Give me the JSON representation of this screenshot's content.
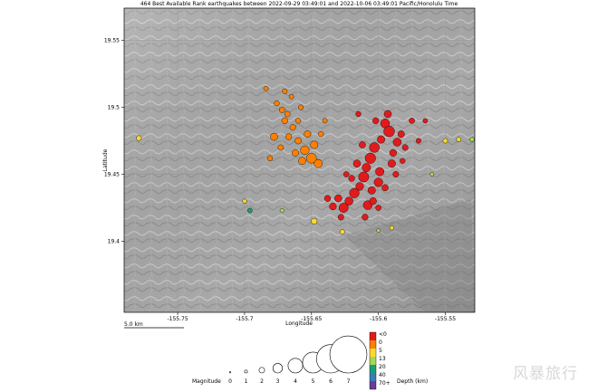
{
  "title": "464 Best Available Rank earthquakes between 2022-09-29 03:49:01 and 2022-10-06 03:49:01 Pacific/Honolulu Time",
  "map": {
    "xlabel": "Longitude",
    "ylabel": "Latitude",
    "lon_ticks": [
      "-155.75",
      "-155.7",
      "-155.65",
      "-155.6",
      "-155.55"
    ],
    "lon_tick_values": [
      -155.75,
      -155.7,
      -155.65,
      -155.6,
      -155.55
    ],
    "lat_ticks": [
      "19.55",
      "19.5",
      "19.45",
      "19.4"
    ],
    "lat_tick_values": [
      19.55,
      19.5,
      19.45,
      19.4
    ],
    "lon_range": [
      -155.79,
      -155.528
    ],
    "lat_range": [
      19.347,
      19.574
    ],
    "scale_bar_label": "5.0 km",
    "background": "shaded relief"
  },
  "legend": {
    "magnitude_title": "Magnitude",
    "magnitudes": [
      "0",
      "1",
      "2",
      "3",
      "4",
      "5",
      "6",
      "7"
    ],
    "depth_title": "Depth (km)",
    "depth_labels": [
      "<0",
      "0",
      "5",
      "13",
      "20",
      "40",
      "70+"
    ],
    "depth_colors": [
      "#e31a1c",
      "#ff7f00",
      "#ffd92f",
      "#a6d854",
      "#1b9e77",
      "#377eb8",
      "#6a3d9a"
    ]
  },
  "watermark": "风暴旅行",
  "chart_data": {
    "type": "scatter",
    "title": "464 Best Available Rank earthquakes between 2022-09-29 03:49:01 and 2022-10-06 03:49:01 Pacific/Honolulu Time",
    "xlabel": "Longitude",
    "ylabel": "Latitude",
    "xlim": [
      -155.79,
      -155.528
    ],
    "ylim": [
      19.347,
      19.574
    ],
    "grid": true,
    "clusters": [
      {
        "depth": "<0",
        "color": "#e31a1c",
        "points": [
          [
            -155.595,
            19.488,
            2.5
          ],
          [
            -155.592,
            19.482,
            3.1
          ],
          [
            -155.598,
            19.476,
            2.0
          ],
          [
            -155.603,
            19.47,
            2.8
          ],
          [
            -155.606,
            19.462,
            3.0
          ],
          [
            -155.609,
            19.455,
            2.3
          ],
          [
            -155.611,
            19.448,
            2.9
          ],
          [
            -155.614,
            19.441,
            2.1
          ],
          [
            -155.618,
            19.436,
            2.7
          ],
          [
            -155.622,
            19.43,
            2.2
          ],
          [
            -155.626,
            19.425,
            2.6
          ],
          [
            -155.63,
            19.432,
            1.9
          ],
          [
            -155.6,
            19.444,
            2.4
          ],
          [
            -155.605,
            19.438,
            2.0
          ],
          [
            -155.608,
            19.427,
            2.5
          ],
          [
            -155.589,
            19.466,
            1.8
          ],
          [
            -155.586,
            19.474,
            2.2
          ],
          [
            -155.59,
            19.458,
            2.0
          ],
          [
            -155.583,
            19.48,
            1.7
          ],
          [
            -155.612,
            19.472,
            1.6
          ],
          [
            -155.616,
            19.458,
            1.9
          ],
          [
            -155.599,
            19.452,
            2.3
          ],
          [
            -155.604,
            19.43,
            1.8
          ],
          [
            -155.62,
            19.447,
            1.5
          ],
          [
            -155.595,
            19.44,
            1.6
          ],
          [
            -155.58,
            19.47,
            1.4
          ],
          [
            -155.575,
            19.49,
            1.3
          ],
          [
            -155.634,
            19.426,
            1.8
          ],
          [
            -155.638,
            19.432,
            1.5
          ],
          [
            -155.628,
            19.418,
            1.4
          ],
          [
            -155.61,
            19.418,
            1.5
          ],
          [
            -155.6,
            19.425,
            1.3
          ],
          [
            -155.587,
            19.45,
            1.4
          ],
          [
            -155.593,
            19.495,
            1.9
          ],
          [
            -155.602,
            19.49,
            1.5
          ],
          [
            -155.615,
            19.495,
            1.2
          ],
          [
            -155.624,
            19.45,
            1.3
          ],
          [
            -155.582,
            19.46,
            1.2
          ],
          [
            -155.57,
            19.475,
            1.1
          ],
          [
            -155.565,
            19.49,
            1.0
          ]
        ]
      },
      {
        "depth": "0",
        "color": "#ff7f00",
        "points": [
          [
            -155.65,
            19.462,
            2.8
          ],
          [
            -155.655,
            19.468,
            2.4
          ],
          [
            -155.648,
            19.472,
            2.0
          ],
          [
            -155.657,
            19.46,
            1.9
          ],
          [
            -155.662,
            19.466,
            1.7
          ],
          [
            -155.645,
            19.458,
            2.2
          ],
          [
            -155.66,
            19.475,
            1.6
          ],
          [
            -155.667,
            19.478,
            1.5
          ],
          [
            -155.653,
            19.48,
            1.7
          ],
          [
            -155.664,
            19.485,
            1.4
          ],
          [
            -155.67,
            19.49,
            1.5
          ],
          [
            -155.672,
            19.498,
            1.3
          ],
          [
            -155.676,
            19.503,
            1.2
          ],
          [
            -155.668,
            19.495,
            1.3
          ],
          [
            -155.66,
            19.49,
            1.2
          ],
          [
            -155.678,
            19.478,
            1.9
          ],
          [
            -155.673,
            19.47,
            1.3
          ],
          [
            -155.681,
            19.462,
            1.2
          ],
          [
            -155.658,
            19.5,
            1.1
          ],
          [
            -155.665,
            19.508,
            1.0
          ],
          [
            -155.67,
            19.512,
            1.1
          ],
          [
            -155.684,
            19.514,
            1.0
          ],
          [
            -155.643,
            19.48,
            1.2
          ],
          [
            -155.64,
            19.49,
            1.0
          ]
        ]
      },
      {
        "depth": "5",
        "color": "#ffd92f",
        "points": [
          [
            -155.779,
            19.477,
            1.1
          ],
          [
            -155.648,
            19.415,
            1.4
          ],
          [
            -155.627,
            19.407,
            1.0
          ],
          [
            -155.55,
            19.475,
            1.0
          ],
          [
            -155.54,
            19.476,
            0.9
          ],
          [
            -155.7,
            19.43,
            0.8
          ],
          [
            -155.59,
            19.41,
            0.8
          ]
        ]
      },
      {
        "depth": "13",
        "color": "#a6d854",
        "points": [
          [
            -155.53,
            19.476,
            0.9
          ],
          [
            -155.672,
            19.423,
            0.8
          ],
          [
            -155.6,
            19.408,
            0.7
          ],
          [
            -155.56,
            19.45,
            0.7
          ]
        ]
      },
      {
        "depth": "20",
        "color": "#1b9e77",
        "points": [
          [
            -155.696,
            19.423,
            1.0
          ]
        ]
      }
    ],
    "scale_bar": "5.0 km"
  }
}
